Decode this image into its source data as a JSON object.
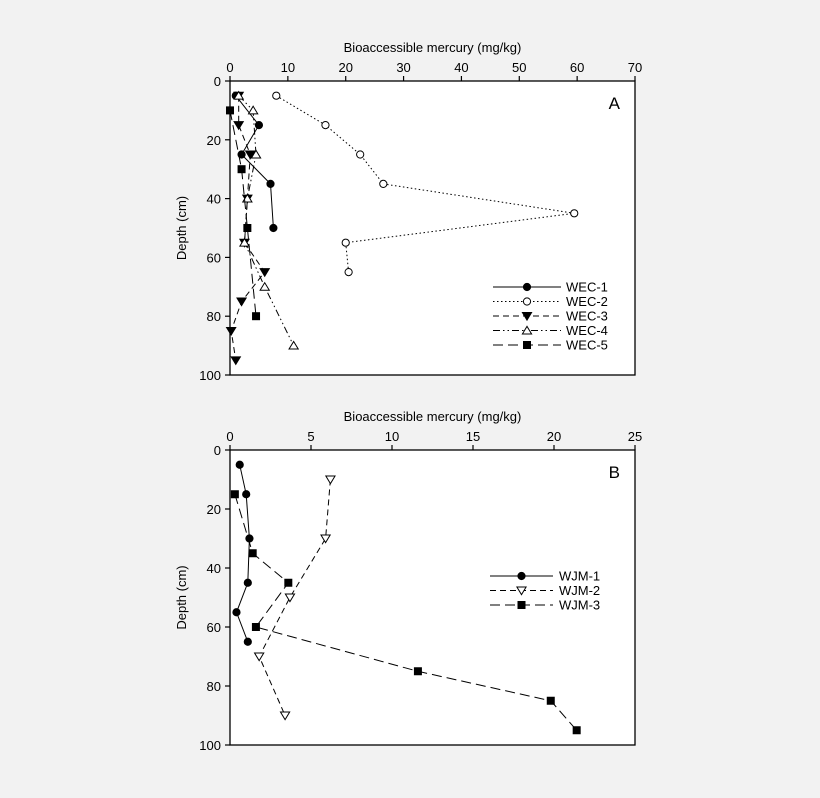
{
  "page": {
    "background": "#f2f2f2"
  },
  "chart_data": [
    {
      "type": "line",
      "panel_label": "A",
      "xlabel": "Bioaccessible mercury (mg/kg)",
      "ylabel": "Depth (cm)",
      "xlim": [
        0,
        70
      ],
      "ylim": [
        0,
        100
      ],
      "y_inverted": true,
      "x_axis_position": "top",
      "xticks": [
        0,
        10,
        20,
        30,
        40,
        50,
        60,
        70
      ],
      "yticks": [
        0,
        20,
        40,
        60,
        80,
        100
      ],
      "grid": false,
      "legend_position": "bottom-right",
      "series": [
        {
          "name": "WEC-1",
          "marker": "filled-circle",
          "line": "solid",
          "points": [
            [
              1,
              5
            ],
            [
              5,
              15
            ],
            [
              2,
              25
            ],
            [
              7,
              35
            ],
            [
              7.5,
              50
            ]
          ]
        },
        {
          "name": "WEC-2",
          "marker": "open-circle",
          "line": "dotted",
          "points": [
            [
              8,
              5
            ],
            [
              16.5,
              15
            ],
            [
              22.5,
              25
            ],
            [
              26.5,
              35
            ],
            [
              59.5,
              45
            ],
            [
              20,
              55
            ],
            [
              20.5,
              65
            ]
          ]
        },
        {
          "name": "WEC-3",
          "marker": "filled-triangle-down",
          "line": "dashed",
          "points": [
            [
              1.5,
              5
            ],
            [
              1.5,
              15
            ],
            [
              3.5,
              25
            ],
            [
              3,
              40
            ],
            [
              2.5,
              55
            ],
            [
              6,
              65
            ],
            [
              2,
              75
            ],
            [
              0.2,
              85
            ],
            [
              1,
              95
            ]
          ]
        },
        {
          "name": "WEC-4",
          "marker": "open-triangle-up",
          "line": "dash-dot-dot",
          "points": [
            [
              1.5,
              5
            ],
            [
              4,
              10
            ],
            [
              4.5,
              25
            ],
            [
              3,
              40
            ],
            [
              2.5,
              55
            ],
            [
              6,
              70
            ],
            [
              11,
              90
            ]
          ]
        },
        {
          "name": "WEC-5",
          "marker": "filled-square",
          "line": "long-dash",
          "points": [
            [
              0,
              10
            ],
            [
              2,
              30
            ],
            [
              3,
              50
            ],
            [
              4.5,
              80
            ]
          ]
        }
      ]
    },
    {
      "type": "line",
      "panel_label": "B",
      "xlabel": "Bioaccessible mercury (mg/kg)",
      "ylabel": "Depth (cm)",
      "xlim": [
        0,
        25
      ],
      "ylim": [
        0,
        100
      ],
      "y_inverted": true,
      "x_axis_position": "top",
      "xticks": [
        0,
        5,
        10,
        15,
        20,
        25
      ],
      "yticks": [
        0,
        20,
        40,
        60,
        80,
        100
      ],
      "grid": false,
      "legend_position": "right",
      "series": [
        {
          "name": "WJM-1",
          "marker": "filled-circle",
          "line": "solid",
          "points": [
            [
              0.6,
              5
            ],
            [
              1,
              15
            ],
            [
              1.2,
              30
            ],
            [
              1.1,
              45
            ],
            [
              0.4,
              55
            ],
            [
              1.1,
              65
            ]
          ]
        },
        {
          "name": "WJM-2",
          "marker": "open-triangle-down",
          "line": "dashed",
          "points": [
            [
              6.2,
              10
            ],
            [
              5.9,
              30
            ],
            [
              3.7,
              50
            ],
            [
              1.8,
              70
            ],
            [
              3.4,
              90
            ]
          ]
        },
        {
          "name": "WJM-3",
          "marker": "filled-square",
          "line": "long-dash",
          "points": [
            [
              0.3,
              15
            ],
            [
              1.4,
              35
            ],
            [
              3.6,
              45
            ],
            [
              1.6,
              60
            ],
            [
              11.6,
              75
            ],
            [
              19.8,
              85
            ],
            [
              21.4,
              95
            ]
          ]
        }
      ]
    }
  ]
}
